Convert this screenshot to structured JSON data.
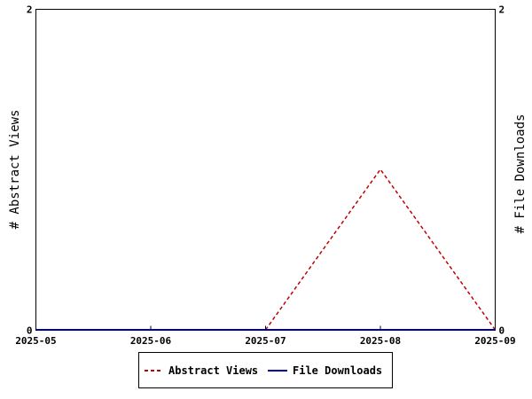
{
  "colors": {
    "abstract_views": "#c00000",
    "file_downloads": "#00009c",
    "axis": "#000000",
    "background": "#ffffff"
  },
  "chart_data": {
    "type": "line",
    "title": "",
    "x": [
      "2025-05",
      "2025-06",
      "2025-07",
      "2025-08",
      "2025-09"
    ],
    "xlabel": "",
    "ylabel_left": "# Abstract Views",
    "ylabel_right": "# File Downloads",
    "ylim_left": [
      0,
      2
    ],
    "ylim_right": [
      0,
      2
    ],
    "y_ticks_left": [
      "0",
      "2"
    ],
    "y_ticks_right": [
      "0",
      "2"
    ],
    "grid": false,
    "legend_position": "bottom",
    "series": [
      {
        "name": "Abstract Views",
        "axis": "left",
        "style": "dashed",
        "color": "#c00000",
        "values": [
          0,
          0,
          0,
          1,
          0
        ]
      },
      {
        "name": "File Downloads",
        "axis": "right",
        "style": "solid",
        "color": "#00009c",
        "values": [
          0,
          0,
          0,
          0,
          0
        ]
      }
    ]
  }
}
